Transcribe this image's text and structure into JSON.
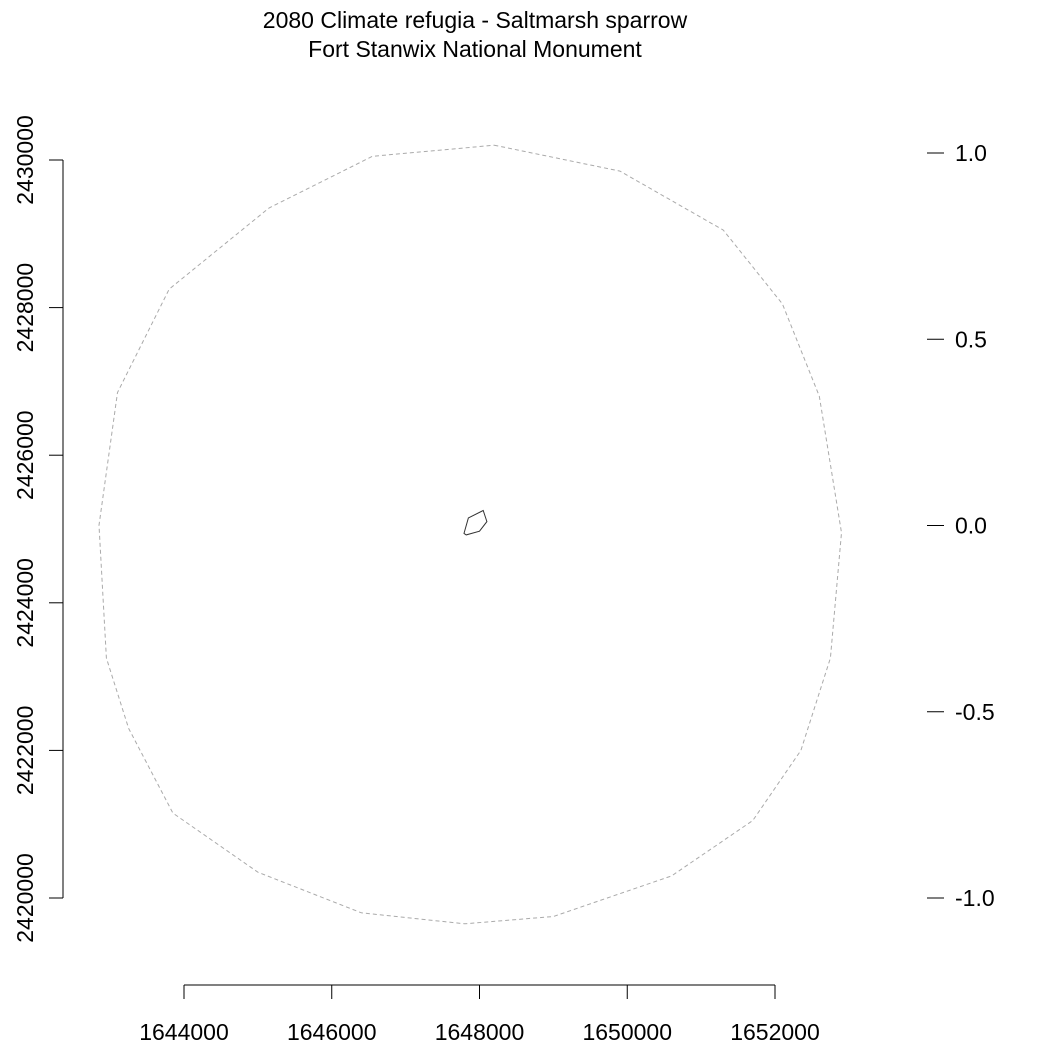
{
  "chart_data": {
    "type": "map",
    "title": "2080 Climate refugia - Saltmarsh sparrow",
    "subtitle": "Fort Stanwix National Monument",
    "x_axis": {
      "ticks": [
        1644000,
        1646000,
        1648000,
        1650000,
        1652000
      ],
      "tick_labels": [
        "1644000",
        "1646000",
        "1648000",
        "1650000",
        "1652000"
      ],
      "range": [
        1644000,
        1652000
      ]
    },
    "y_axis": {
      "ticks": [
        2420000,
        2422000,
        2424000,
        2426000,
        2428000,
        2430000
      ],
      "tick_labels": [
        "2420000",
        "2422000",
        "2424000",
        "2426000",
        "2428000",
        "2430000"
      ],
      "range": [
        2420000,
        2430000
      ]
    },
    "legend_scale": {
      "ticks": [
        1.0,
        0.5,
        0.0,
        -0.5,
        -1.0
      ],
      "tick_labels": [
        "1.0",
        "0.5",
        "0.0",
        "-0.5",
        "-1.0"
      ],
      "range": [
        -1.0,
        1.0
      ]
    },
    "buffer_polygon": {
      "style": "dashed",
      "color": "#aaaaaa",
      "points": [
        [
          1648200,
          2430200
        ],
        [
          1649900,
          2429850
        ],
        [
          1651300,
          2429050
        ],
        [
          1652100,
          2428050
        ],
        [
          1652600,
          2426800
        ],
        [
          1652900,
          2424950
        ],
        [
          1652750,
          2423250
        ],
        [
          1652350,
          2422000
        ],
        [
          1651700,
          2421050
        ],
        [
          1650600,
          2420300
        ],
        [
          1649000,
          2419750
        ],
        [
          1647800,
          2419650
        ],
        [
          1646400,
          2419800
        ],
        [
          1645000,
          2420350
        ],
        [
          1643850,
          2421150
        ],
        [
          1643250,
          2422300
        ],
        [
          1642950,
          2423250
        ],
        [
          1642850,
          2425050
        ],
        [
          1643100,
          2426850
        ],
        [
          1643800,
          2428250
        ],
        [
          1645150,
          2429350
        ],
        [
          1646550,
          2430050
        ]
      ]
    },
    "park_boundary": {
      "color": "#333333",
      "points": [
        [
          1647850,
          2425150
        ],
        [
          1648050,
          2425250
        ],
        [
          1648100,
          2425100
        ],
        [
          1648000,
          2424970
        ],
        [
          1647820,
          2424920
        ],
        [
          1647790,
          2424940
        ]
      ]
    }
  }
}
